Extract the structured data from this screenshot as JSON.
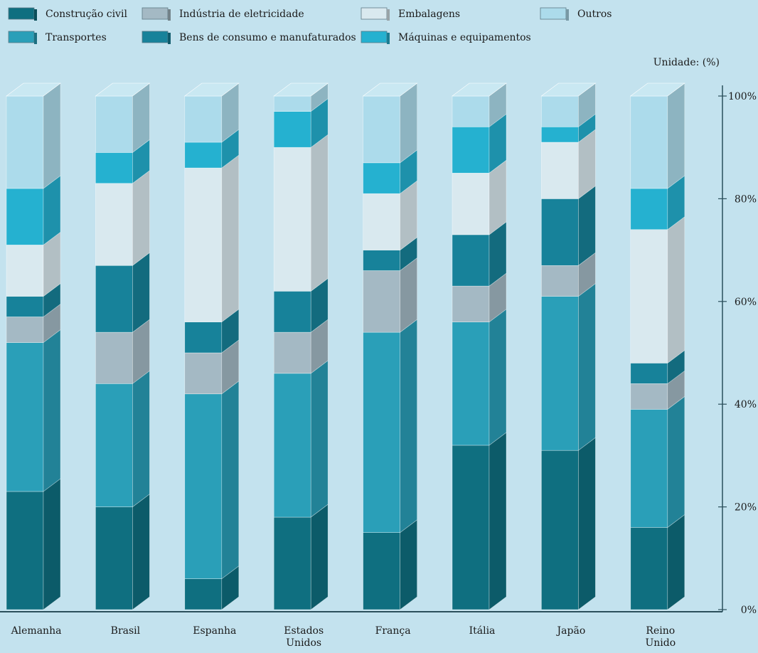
{
  "chart_data": {
    "type": "bar",
    "stacked": true,
    "style": "3d-stacked-columns",
    "unit_label": "Unidade: (%)",
    "categories": [
      "Alemanha",
      "Brasil",
      "Espanha",
      "Estados Unidos",
      "França",
      "Itália",
      "Japão",
      "Reino Unido"
    ],
    "category_lines": [
      [
        "Alemanha"
      ],
      [
        "Brasil"
      ],
      [
        "Espanha"
      ],
      [
        "Estados",
        "Unidos"
      ],
      [
        "França"
      ],
      [
        "Itália"
      ],
      [
        "Japão"
      ],
      [
        "Reino",
        "Unido"
      ]
    ],
    "ylim": [
      0,
      100
    ],
    "yticks": [
      0,
      20,
      40,
      60,
      80,
      100
    ],
    "ytick_labels": [
      "0%",
      "20%",
      "40%",
      "60%",
      "80%",
      "100%"
    ],
    "series": [
      {
        "name": "Construção civil",
        "color": "#0f6f80",
        "values": [
          23,
          20,
          6,
          18,
          15,
          32,
          31,
          16
        ]
      },
      {
        "name": "Transportes",
        "color": "#2a9fb8",
        "values": [
          29,
          24,
          36,
          28,
          39,
          24,
          30,
          23
        ]
      },
      {
        "name": "Indústria de eletricidade",
        "color": "#a4b9c4",
        "values": [
          5,
          10,
          8,
          8,
          12,
          7,
          6,
          5
        ]
      },
      {
        "name": "Bens de consumo e manufaturados",
        "color": "#17829a",
        "values": [
          4,
          13,
          6,
          8,
          4,
          10,
          13,
          4
        ]
      },
      {
        "name": "Embalagens",
        "color": "#d9e9ef",
        "values": [
          10,
          16,
          30,
          28,
          11,
          12,
          11,
          26
        ]
      },
      {
        "name": "Máquinas e equipamentos",
        "color": "#25b1d0",
        "values": [
          11,
          6,
          5,
          7,
          6,
          9,
          3,
          8
        ]
      },
      {
        "name": "Outros",
        "color": "#acdbeb",
        "values": [
          18,
          11,
          9,
          3,
          13,
          6,
          6,
          18
        ]
      }
    ],
    "legend": [
      {
        "name": "Construção civil",
        "color": "#0f6f80"
      },
      {
        "name": "Indústria de eletricidade",
        "color": "#a4b9c4"
      },
      {
        "name": "Embalagens",
        "color": "#d9e9ef"
      },
      {
        "name": "Outros",
        "color": "#acdbeb"
      },
      {
        "name": "Transportes",
        "color": "#2a9fb8"
      },
      {
        "name": "Bens de consumo e manufaturados",
        "color": "#17829a"
      },
      {
        "name": "Máquinas e equipamentos",
        "color": "#25b1d0"
      }
    ],
    "legend_position": "top",
    "grid": false
  }
}
